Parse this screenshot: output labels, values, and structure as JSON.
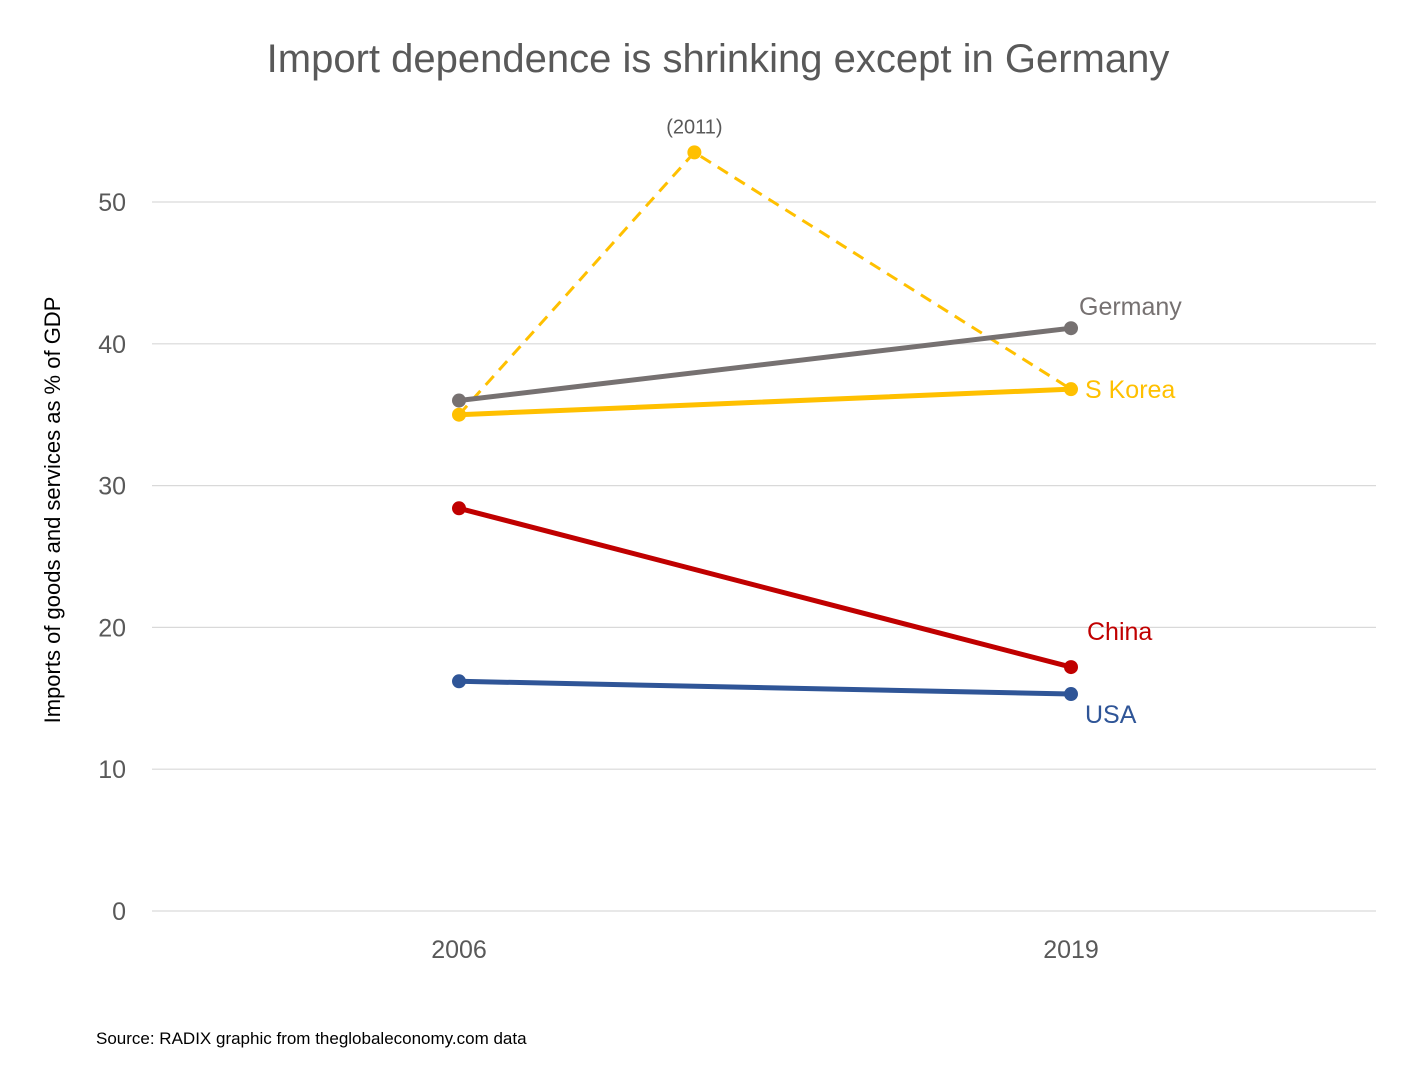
{
  "chart_data": {
    "type": "line",
    "title": "Import dependence is shrinking except in Germany",
    "xlabel": "",
    "ylabel": "Imports of goods and services as % of GDP",
    "categories": [
      "2006",
      "2019"
    ],
    "ylim": [
      0,
      55
    ],
    "yticks": [
      "0",
      "10",
      "20",
      "30",
      "40",
      "50"
    ],
    "grid": true,
    "series": [
      {
        "name": "Germany",
        "values": [
          36.0,
          41.1
        ],
        "color": "#767171"
      },
      {
        "name": "S Korea",
        "values": [
          35.0,
          36.8
        ],
        "color": "#ffc000"
      },
      {
        "name": "China",
        "values": [
          28.4,
          17.2
        ],
        "color": "#c00000"
      },
      {
        "name": "USA",
        "values": [
          16.2,
          15.3
        ],
        "color": "#2f5597"
      }
    ],
    "peak": {
      "series": "S Korea",
      "label": "(2011)",
      "year": 2011,
      "value": 53.5,
      "style": "dashed"
    },
    "source": "Source: RADIX graphic from theglobaleconomy.com data"
  }
}
